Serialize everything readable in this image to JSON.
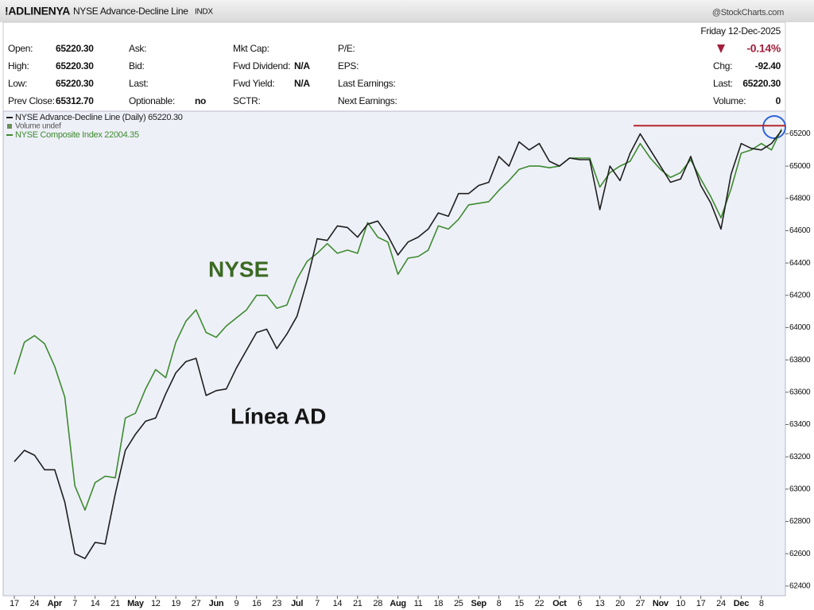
{
  "header": {
    "symbol": "!ADLINENYA",
    "name": "NYSE Advance-Decline Line",
    "exchange": "INDX",
    "source": "@StockCharts.com"
  },
  "quote": {
    "columns": [
      [
        {
          "label": "Open:",
          "value": "65220.30"
        },
        {
          "label": "High:",
          "value": "65220.30"
        },
        {
          "label": "Low:",
          "value": "65220.30"
        },
        {
          "label": "Prev Close:",
          "value": "65312.70"
        }
      ],
      [
        {
          "label": "Ask:"
        },
        {
          "label": "Bid:"
        },
        {
          "label": "Last:"
        },
        {
          "label": "Optionable:",
          "value": "no"
        }
      ],
      [
        {
          "label": "Mkt Cap:"
        },
        {
          "label": "Fwd Dividend:",
          "value": "N/A"
        },
        {
          "label": "Fwd Yield:",
          "value": "N/A"
        },
        {
          "label": "SCTR:"
        }
      ],
      [
        {
          "label": "P/E:"
        },
        {
          "label": "EPS:"
        },
        {
          "label": "Last Earnings:"
        },
        {
          "label": "Next Earnings:"
        }
      ]
    ],
    "date": "Friday  12-Dec-2025",
    "change_pct": "-0.14%",
    "summary": [
      {
        "label": "Chg:",
        "value": "-92.40"
      },
      {
        "label": "Last:",
        "value": "65220.30"
      },
      {
        "label": "Volume:",
        "value": "0"
      }
    ]
  },
  "chart_data": {
    "type": "line",
    "legend_extra": "Volume undef",
    "categories": [
      "17",
      null,
      "24",
      null,
      "Apr",
      null,
      "7",
      null,
      "14",
      null,
      "21",
      null,
      "May",
      null,
      "12",
      null,
      "19",
      null,
      "27",
      null,
      "Jun",
      null,
      "9",
      null,
      "16",
      null,
      "23",
      null,
      "Jul",
      null,
      "7",
      null,
      "14",
      null,
      "21",
      null,
      "28",
      null,
      "Aug",
      null,
      "11",
      null,
      "18",
      null,
      "25",
      null,
      "Sep",
      null,
      "8",
      null,
      "15",
      null,
      "22",
      null,
      "Oct",
      null,
      "6",
      null,
      "13",
      null,
      "20",
      null,
      "27",
      null,
      "Nov",
      null,
      "10",
      null,
      "17",
      null,
      "24",
      null,
      "Dec",
      null,
      "8",
      null,
      null
    ],
    "series": [
      {
        "name": "NYSE Advance-Decline Line (Daily) 65220.30",
        "color": "#1e1e1e",
        "values": [
          63170,
          63240,
          63210,
          63120,
          63120,
          62920,
          62600,
          62570,
          62670,
          62660,
          62970,
          63240,
          63340,
          63420,
          63440,
          63590,
          63720,
          63790,
          63810,
          63580,
          63610,
          63620,
          63750,
          63860,
          63970,
          63990,
          63870,
          63960,
          64070,
          64290,
          64550,
          64540,
          64630,
          64620,
          64560,
          64640,
          64660,
          64570,
          64450,
          64530,
          64560,
          64610,
          64710,
          64690,
          64830,
          64830,
          64880,
          64900,
          65060,
          65000,
          65150,
          65100,
          65140,
          65030,
          65000,
          65050,
          65040,
          65040,
          64730,
          65000,
          64910,
          65080,
          65200,
          65100,
          65000,
          64900,
          64920,
          65060,
          64880,
          64770,
          64610,
          64950,
          65140,
          65110,
          65100,
          65140,
          65220
        ]
      },
      {
        "name": "NYSE Composite Index 22004.35",
        "color": "#3d8b2f",
        "values": [
          63710,
          63910,
          63950,
          63900,
          63760,
          63570,
          63020,
          62870,
          63040,
          63080,
          63070,
          63440,
          63470,
          63620,
          63740,
          63690,
          63910,
          64040,
          64110,
          63970,
          63940,
          64010,
          64060,
          64110,
          64200,
          64200,
          64120,
          64140,
          64300,
          64410,
          64460,
          64520,
          64460,
          64480,
          64460,
          64650,
          64560,
          64530,
          64330,
          64430,
          64440,
          64480,
          64630,
          64610,
          64670,
          64760,
          64770,
          64780,
          64850,
          64910,
          64980,
          65000,
          65000,
          64990,
          65000,
          65050,
          65050,
          65050,
          64870,
          64960,
          65000,
          65030,
          65140,
          65050,
          64980,
          64930,
          64960,
          65040,
          64920,
          64810,
          64680,
          64860,
          65080,
          65100,
          65140,
          65100,
          65230
        ]
      }
    ],
    "hline": {
      "value": 65250,
      "color": "#b5262c"
    },
    "annotations": [
      {
        "text": "NYSE",
        "color": "#3b6a22"
      },
      {
        "text": "Línea AD",
        "color": "#151515"
      }
    ],
    "ylim": [
      62340,
      65340
    ],
    "yticks": [
      62400,
      62600,
      62800,
      63000,
      63200,
      63400,
      63600,
      63800,
      64000,
      64200,
      64400,
      64600,
      64800,
      65000,
      65200
    ],
    "grid": false
  }
}
